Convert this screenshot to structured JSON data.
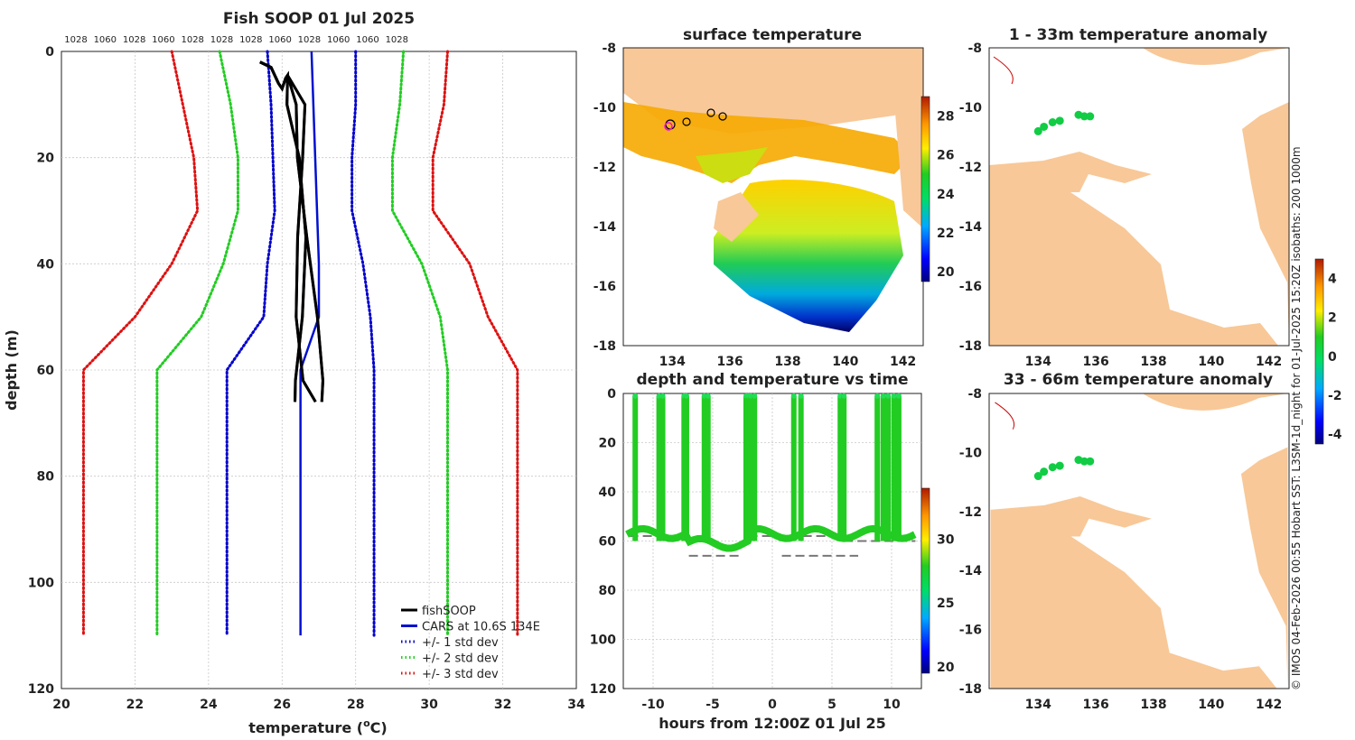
{
  "chart_data": [
    {
      "type": "line",
      "title": "Fish SOOP 01 Jul 2025",
      "xlabel": "temperature (",
      "xlabel_sup": "o",
      "xlabel_end": "C)",
      "ylabel": "depth (m)",
      "xlim": [
        20,
        34
      ],
      "ylim": [
        0,
        120
      ],
      "y_reversed": true,
      "xticks": [
        "20",
        "22",
        "24",
        "26",
        "28",
        "30",
        "32",
        "34"
      ],
      "yticks": [
        "0",
        "20",
        "40",
        "60",
        "80",
        "100",
        "120"
      ],
      "top_labels": [
        "1028",
        "1060",
        "1028",
        "1060",
        "1028",
        "1028",
        "1028",
        "1060",
        "1028",
        "1060",
        "1060",
        "1028"
      ],
      "depth": [
        0,
        10,
        20,
        30,
        40,
        50,
        60,
        110
      ],
      "series": [
        {
          "name": "CARS at 10.6S 134E",
          "color": "#0010d0",
          "style": "solid",
          "values": [
            26.8,
            26.85,
            26.9,
            26.95,
            27.0,
            27.0,
            26.5,
            26.5
          ]
        },
        {
          "name": "+/- 1 std dev",
          "color": "#0000cc",
          "style": "dotted",
          "lower": [
            25.6,
            25.7,
            25.75,
            25.8,
            25.6,
            25.5,
            24.5,
            24.5
          ],
          "upper": [
            28.0,
            28.0,
            27.9,
            27.9,
            28.2,
            28.4,
            28.5,
            28.5
          ]
        },
        {
          "name": "+/- 2 std dev",
          "color": "#22cc22",
          "style": "dotted",
          "lower": [
            24.3,
            24.6,
            24.8,
            24.8,
            24.4,
            23.8,
            22.6,
            22.6
          ],
          "upper": [
            29.3,
            29.2,
            29.0,
            29.0,
            29.8,
            30.3,
            30.5,
            30.5
          ]
        },
        {
          "name": "+/- 3 std dev",
          "color": "#dd1111",
          "style": "dotted",
          "lower": [
            23.0,
            23.3,
            23.6,
            23.7,
            23.0,
            22.0,
            20.6,
            20.6
          ],
          "upper": [
            30.5,
            30.4,
            30.1,
            30.1,
            31.1,
            31.6,
            32.4,
            32.4
          ]
        }
      ],
      "fishsoop": {
        "name": "fishSOOP",
        "color": "#000000",
        "points": [
          [
            25.4,
            2
          ],
          [
            25.7,
            3
          ],
          [
            25.9,
            6
          ],
          [
            26.0,
            7
          ],
          [
            26.1,
            5
          ],
          [
            26.15,
            4.5
          ],
          [
            26.2,
            10
          ],
          [
            26.3,
            20
          ],
          [
            26.4,
            35
          ],
          [
            26.45,
            50
          ],
          [
            26.5,
            62
          ],
          [
            26.6,
            66
          ]
        ]
      },
      "legend": [
        "fishSOOP",
        "CARS at 10.6S 134E",
        "+/- 1 std dev",
        "+/- 2 std dev",
        "+/- 3 std dev"
      ]
    },
    {
      "type": "heatmap",
      "title": "surface temperature",
      "xticks": [
        "134",
        "136",
        "138",
        "140",
        "142"
      ],
      "yticks": [
        "-8",
        "-10",
        "-12",
        "-14",
        "-16",
        "-18"
      ],
      "xlim": [
        132.3,
        142.7
      ],
      "ylim": [
        -18,
        -8
      ],
      "colorbar": {
        "ticks": [
          "20",
          "22",
          "24",
          "26",
          "28"
        ],
        "range": [
          19.5,
          29
        ]
      }
    },
    {
      "type": "heatmap",
      "title": "1 - 33m temperature anomaly",
      "xticks": [
        "134",
        "136",
        "138",
        "140",
        "142"
      ],
      "yticks": [
        "-8",
        "-10",
        "-12",
        "-14",
        "-16",
        "-18"
      ],
      "xlim": [
        132.3,
        142.7
      ],
      "ylim": [
        -18,
        -8
      ],
      "points": [
        [
          134.0,
          -10.8
        ],
        [
          134.2,
          -10.65
        ],
        [
          134.5,
          -10.5
        ],
        [
          134.75,
          -10.45
        ],
        [
          135.4,
          -10.25
        ],
        [
          135.6,
          -10.3
        ],
        [
          135.8,
          -10.3
        ]
      ]
    },
    {
      "type": "scatter",
      "title": "depth and temperature vs time",
      "xlabel": "hours from 12:00Z 01 Jul 25",
      "xticks": [
        "-10",
        "-5",
        "0",
        "5",
        "10"
      ],
      "yticks": [
        "0",
        "20",
        "40",
        "60",
        "80",
        "100",
        "120"
      ],
      "xlim": [
        -12.5,
        12.5
      ],
      "ylim": [
        0,
        120
      ],
      "colorbar": {
        "ticks": [
          "20",
          "25",
          "30"
        ],
        "range": [
          19.5,
          34
        ]
      },
      "casts": [
        -11.5,
        -9.5,
        -9.2,
        -7.4,
        -7.2,
        -5.7,
        -5.4,
        -2.2,
        -2.0,
        -1.8,
        -1.5,
        1.8,
        2.4,
        5.7,
        6.0,
        8.8,
        9.3,
        9.7,
        10.2,
        10.6
      ]
    },
    {
      "type": "heatmap",
      "title": "33 - 66m temperature anomaly",
      "xticks": [
        "134",
        "136",
        "138",
        "140",
        "142"
      ],
      "yticks": [
        "-8",
        "-10",
        "-12",
        "-14",
        "-16",
        "-18"
      ],
      "xlim": [
        132.3,
        142.7
      ],
      "ylim": [
        -18,
        -8
      ],
      "points": [
        [
          134.0,
          -10.8
        ],
        [
          134.2,
          -10.65
        ],
        [
          134.5,
          -10.5
        ],
        [
          134.75,
          -10.45
        ],
        [
          135.4,
          -10.25
        ],
        [
          135.6,
          -10.3
        ],
        [
          135.8,
          -10.3
        ]
      ]
    }
  ],
  "anomaly_colorbar": {
    "ticks": [
      "4",
      "2",
      "0",
      "-2",
      "-4"
    ],
    "range": [
      -4.5,
      5
    ]
  },
  "footer": "© IMOS 04-Feb-2026 00:55 Hobart SST: L3SM-1d_night for 01-Jul-2025 15:20Z isobaths: 200  1000m"
}
